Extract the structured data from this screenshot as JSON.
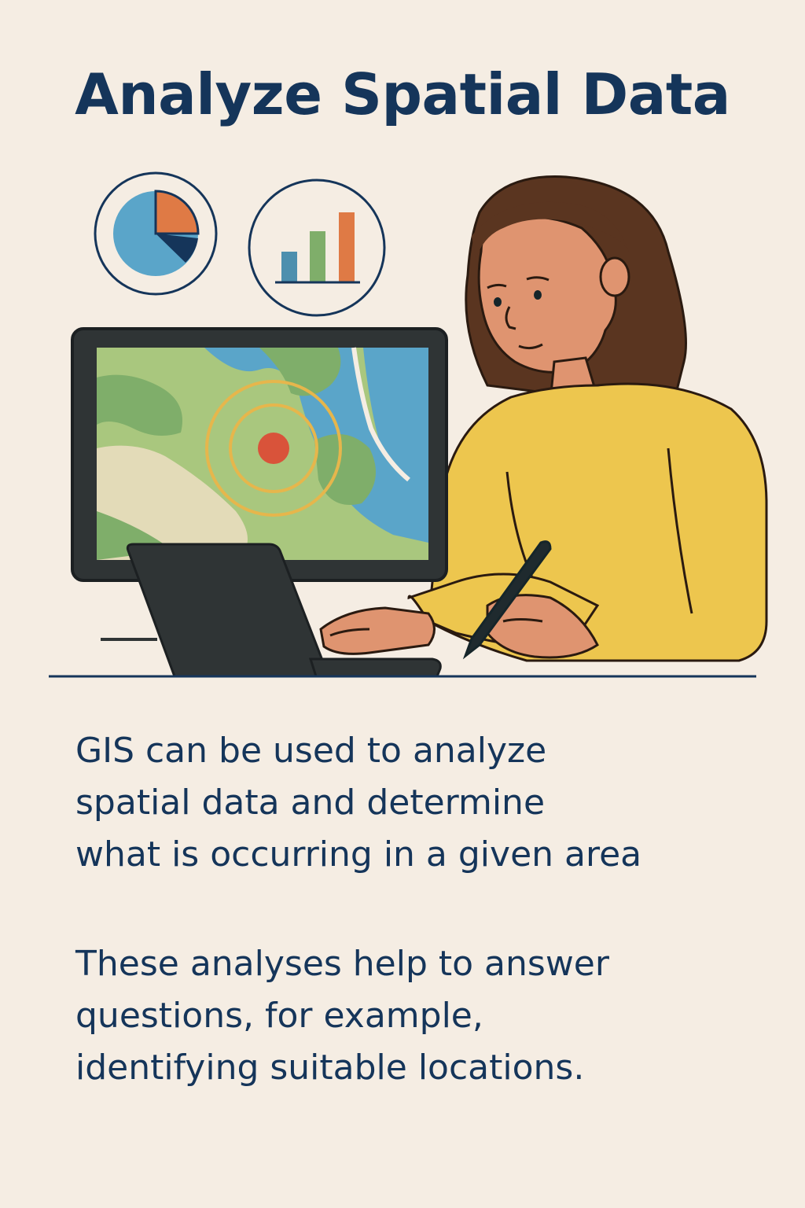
{
  "title": "Analyze Spatial Data",
  "paragraphs": [
    "GIS can be used to analyze\nspatial data and determine\nwhat is occurring in a given area",
    "These analyses help to answer\nquestions, for example,\nidentifying suitable locations."
  ],
  "icons": [
    "pie-chart-icon",
    "bar-chart-icon",
    "map-screen",
    "target-marker-icon",
    "laptop",
    "stylus",
    "woman-analyst"
  ],
  "colors": {
    "background": "#f5ede3",
    "text": "#15355a",
    "sweater": "#edc64e",
    "map_water": "#5aa5c9",
    "map_land": "#a9c77e",
    "target_ring": "#e6b64c",
    "target_point": "#d9533a"
  }
}
